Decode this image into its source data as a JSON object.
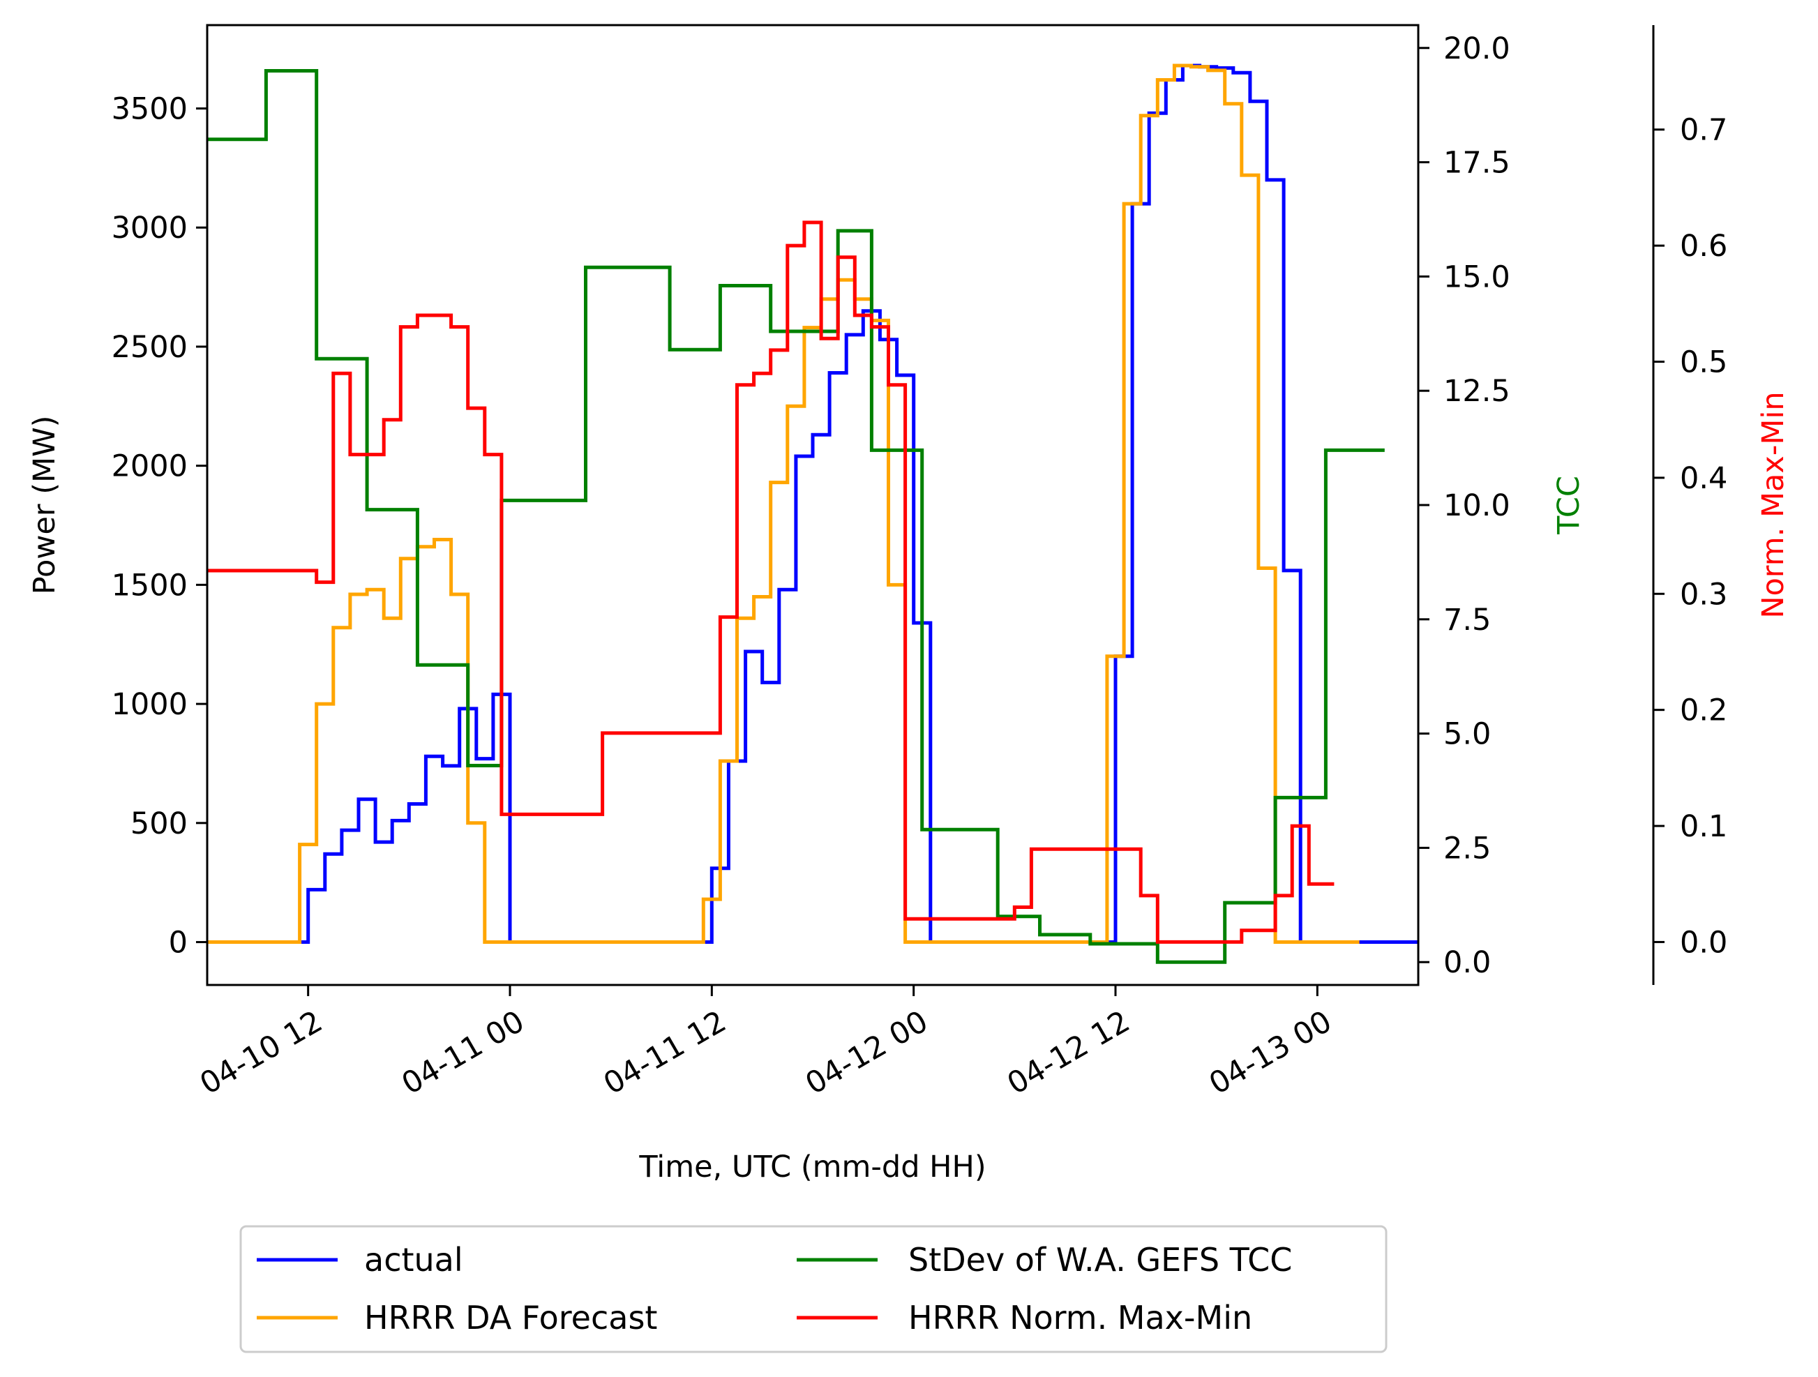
{
  "chart_data": {
    "type": "line",
    "step": true,
    "xlabel": "Time, UTC (mm-dd HH)",
    "ylabel": "Power (MW)",
    "y2label": "TCC",
    "y3label": "Norm. Max-Min",
    "ylabel_colors": {
      "ylabel": "#000000",
      "y2label": "#008000",
      "y3label": "#ff0000"
    },
    "xlim": [
      "04-10 06:00",
      "04-13 06:00"
    ],
    "ylim": [
      -180,
      3850
    ],
    "y2lim": [
      -0.5,
      20.5
    ],
    "y3lim": [
      -0.037,
      0.79
    ],
    "xticks": [
      "04-10 12",
      "04-11 00",
      "04-11 12",
      "04-12 00",
      "04-12 12",
      "04-13 00"
    ],
    "yticks": [
      "0",
      "500",
      "1000",
      "1500",
      "2000",
      "2500",
      "3000",
      "3500"
    ],
    "y2ticks": [
      "0.0",
      "2.5",
      "5.0",
      "7.5",
      "10.0",
      "12.5",
      "15.0",
      "17.5",
      "20.0"
    ],
    "y3ticks": [
      "0.0",
      "0.1",
      "0.2",
      "0.3",
      "0.4",
      "0.5",
      "0.6",
      "0.7"
    ],
    "grid": false,
    "legend_position": "below",
    "legend": [
      {
        "label": "actual",
        "color": "#0000ff"
      },
      {
        "label": "StDev of W.A. GEFS TCC",
        "color": "#008000"
      },
      {
        "label": "HRRR DA Forecast",
        "color": "#ffa500"
      },
      {
        "label": "HRRR Norm. Max-Min",
        "color": "#ff0000"
      }
    ],
    "series": [
      {
        "name": "actual",
        "axis": "left",
        "color": "#0000ff",
        "x": [
          "04-10 06:00",
          "04-10 12:00",
          "04-10 13:00",
          "04-10 14:00",
          "04-10 15:00",
          "04-10 16:00",
          "04-10 17:00",
          "04-10 18:00",
          "04-10 19:00",
          "04-10 20:00",
          "04-10 21:00",
          "04-10 22:00",
          "04-10 23:00",
          "04-11 00:00",
          "04-11 01:00",
          "04-11 02:00",
          "04-11 03:00",
          "04-11 04:00",
          "04-11 05:00",
          "04-11 06:00",
          "04-11 07:00",
          "04-11 08:00",
          "04-11 09:00",
          "04-11 10:00",
          "04-11 11:00",
          "04-11 12:00",
          "04-11 13:00",
          "04-11 14:00",
          "04-11 15:00",
          "04-11 16:00",
          "04-11 17:00",
          "04-11 18:00",
          "04-11 19:00",
          "04-11 20:00",
          "04-11 21:00",
          "04-11 22:00",
          "04-11 23:00",
          "04-12 00:00",
          "04-12 01:00",
          "04-12 02:00",
          "04-12 03:00",
          "04-12 04:00",
          "04-12 05:00",
          "04-12 06:00",
          "04-12 07:00",
          "04-12 08:00",
          "04-12 09:00",
          "04-12 10:00",
          "04-12 11:00",
          "04-12 12:00",
          "04-12 13:00",
          "04-12 14:00",
          "04-12 15:00",
          "04-12 16:00",
          "04-12 17:00",
          "04-12 18:00",
          "04-12 19:00",
          "04-12 20:00",
          "04-12 21:00",
          "04-12 22:00",
          "04-12 23:00",
          "04-13 00:00",
          "04-13 01:00",
          "04-13 02:00",
          "04-13 03:00",
          "04-13 04:00",
          "04-13 05:00"
        ],
        "values": [
          0,
          220,
          370,
          470,
          600,
          420,
          510,
          580,
          780,
          740,
          980,
          770,
          1040,
          0,
          0,
          0,
          0,
          0,
          0,
          0,
          0,
          0,
          0,
          0,
          0,
          310,
          760,
          1220,
          1090,
          1480,
          2040,
          2130,
          2390,
          2550,
          2650,
          2530,
          2380,
          1340,
          0,
          0,
          0,
          0,
          0,
          0,
          0,
          0,
          0,
          0,
          0,
          1200,
          3100,
          3480,
          3620,
          3680,
          3675,
          3670,
          3650,
          3530,
          3200,
          1560,
          0,
          0,
          0,
          0,
          0,
          0,
          0
        ]
      },
      {
        "name": "HRRR DA Forecast",
        "axis": "left",
        "color": "#ffa500",
        "x": [
          "04-10 06:00",
          "04-10 11:30",
          "04-10 12:30",
          "04-10 13:30",
          "04-10 14:30",
          "04-10 15:30",
          "04-10 16:30",
          "04-10 17:30",
          "04-10 18:30",
          "04-10 19:30",
          "04-10 20:30",
          "04-10 21:30",
          "04-10 22:30",
          "04-10 23:30",
          "04-11 00:30",
          "04-11 11:30",
          "04-11 12:30",
          "04-11 13:30",
          "04-11 14:30",
          "04-11 15:30",
          "04-11 16:30",
          "04-11 17:30",
          "04-11 18:30",
          "04-11 19:30",
          "04-11 20:30",
          "04-11 21:30",
          "04-11 22:30",
          "04-11 23:30",
          "04-12 00:30",
          "04-12 11:30",
          "04-12 12:30",
          "04-12 13:30",
          "04-12 14:30",
          "04-12 15:30",
          "04-12 16:30",
          "04-12 17:30",
          "04-12 18:30",
          "04-12 19:30",
          "04-12 20:30",
          "04-12 21:30",
          "04-12 22:30",
          "04-12 23:30",
          "04-13 00:30",
          "04-13 01:30"
        ],
        "values": [
          0,
          410,
          1000,
          1320,
          1460,
          1480,
          1360,
          1610,
          1660,
          1690,
          1460,
          500,
          0,
          0,
          0,
          180,
          760,
          1360,
          1450,
          1930,
          2250,
          2580,
          2700,
          2780,
          2700,
          2610,
          1500,
          0,
          0,
          1200,
          3100,
          3470,
          3620,
          3680,
          3675,
          3660,
          3520,
          3220,
          1570,
          0,
          0,
          0,
          0,
          0
        ]
      },
      {
        "name": "StDev of W.A. GEFS TCC",
        "axis": "right",
        "color": "#008000",
        "x": [
          "04-10 06:00",
          "04-10 09:30",
          "04-10 12:30",
          "04-10 15:30",
          "04-10 18:30",
          "04-10 21:30",
          "04-10 23:30",
          "04-11 04:30",
          "04-11 09:30",
          "04-11 12:30",
          "04-11 15:30",
          "04-11 19:30",
          "04-11 21:30",
          "04-12 00:30",
          "04-12 05:00",
          "04-12 07:30",
          "04-12 10:30",
          "04-12 14:30",
          "04-12 18:30",
          "04-12 21:30",
          "04-13 00:30",
          "04-13 03:00"
        ],
        "values": [
          18.0,
          19.5,
          13.2,
          9.9,
          6.5,
          4.3,
          10.1,
          15.2,
          13.4,
          14.8,
          13.8,
          16.0,
          11.2,
          2.9,
          1.0,
          0.6,
          0.4,
          0.0,
          1.3,
          3.6,
          11.2,
          11.2
        ]
      },
      {
        "name": "HRRR Norm. Max-Min",
        "axis": "right2",
        "color": "#ff0000",
        "x": [
          "04-10 06:00",
          "04-10 12:30",
          "04-10 13:30",
          "04-10 14:30",
          "04-10 15:30",
          "04-10 16:30",
          "04-10 17:30",
          "04-10 18:30",
          "04-10 19:30",
          "04-10 20:30",
          "04-10 21:30",
          "04-10 22:30",
          "04-10 23:30",
          "04-11 05:30",
          "04-11 12:30",
          "04-11 13:30",
          "04-11 14:30",
          "04-11 15:30",
          "04-11 16:30",
          "04-11 17:30",
          "04-11 18:30",
          "04-11 19:30",
          "04-11 20:30",
          "04-11 21:30",
          "04-11 22:30",
          "04-11 23:30",
          "04-12 00:30",
          "04-12 06:00",
          "04-12 07:00",
          "04-12 12:30",
          "04-12 13:30",
          "04-12 14:30",
          "04-12 15:30",
          "04-12 16:30",
          "04-12 17:30",
          "04-12 18:30",
          "04-12 19:30",
          "04-12 20:30",
          "04-12 21:30",
          "04-12 22:30",
          "04-12 23:30",
          "04-13 00:00"
        ],
        "values": [
          0.32,
          0.31,
          0.49,
          0.42,
          0.42,
          0.45,
          0.53,
          0.54,
          0.54,
          0.53,
          0.46,
          0.42,
          0.11,
          0.18,
          0.28,
          0.48,
          0.49,
          0.51,
          0.6,
          0.62,
          0.52,
          0.59,
          0.54,
          0.53,
          0.48,
          0.02,
          0.02,
          0.03,
          0.08,
          0.08,
          0.04,
          0.0,
          0.0,
          0.0,
          0.0,
          0.0,
          0.01,
          0.01,
          0.04,
          0.1,
          0.05,
          0.05
        ]
      }
    ]
  }
}
